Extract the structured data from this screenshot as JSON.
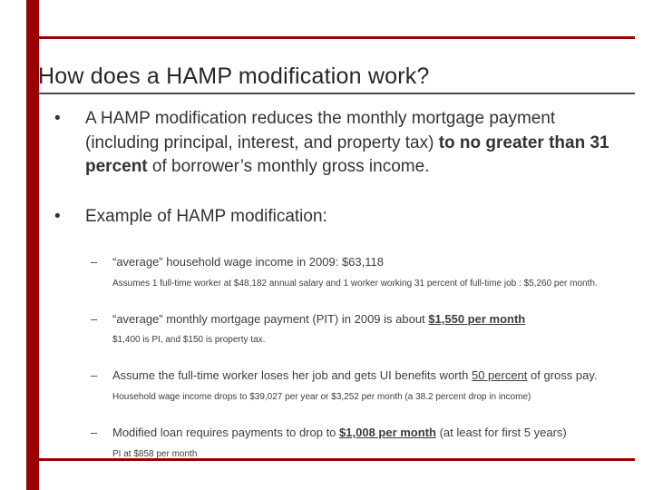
{
  "accent_color": "#990000",
  "title": "How does a HAMP modification work?",
  "bullets": [
    {
      "marker": "•",
      "pre": "A HAMP modification reduces the monthly mortgage payment (including principal, interest, and property tax) ",
      "emph": "to no greater than 31 percent",
      "post": " of borrower’s monthly gross income."
    },
    {
      "marker": "•",
      "pre": "Example of HAMP modification:"
    }
  ],
  "subitems": [
    {
      "marker": "–",
      "pre": "“average” household wage income in 2009: $63,118",
      "note": "Assumes 1 full-time worker at $48,182 annual salary and 1 worker working 31 percent of full-time job :  $5,260 per month."
    },
    {
      "marker": "–",
      "pre": "“average” monthly mortgage payment (PIT) in 2009 is about ",
      "emph": "$1,550 per month",
      "note": "$1,400 is PI, and $150 is property tax."
    },
    {
      "marker": "–",
      "pre": "Assume the full-time worker loses her job and gets UI benefits worth ",
      "emph": "50 percent",
      "post": " of gross pay.",
      "note": "Household wage income drops to $39,027 per year or $3,252 per month  (a 38.2 percent drop in income)"
    },
    {
      "marker": "–",
      "pre": "Modified loan requires payments to drop to ",
      "emph": "$1,008 per month",
      "post": " (at least for first 5 years)",
      "note": "PI at $858 per month"
    }
  ]
}
